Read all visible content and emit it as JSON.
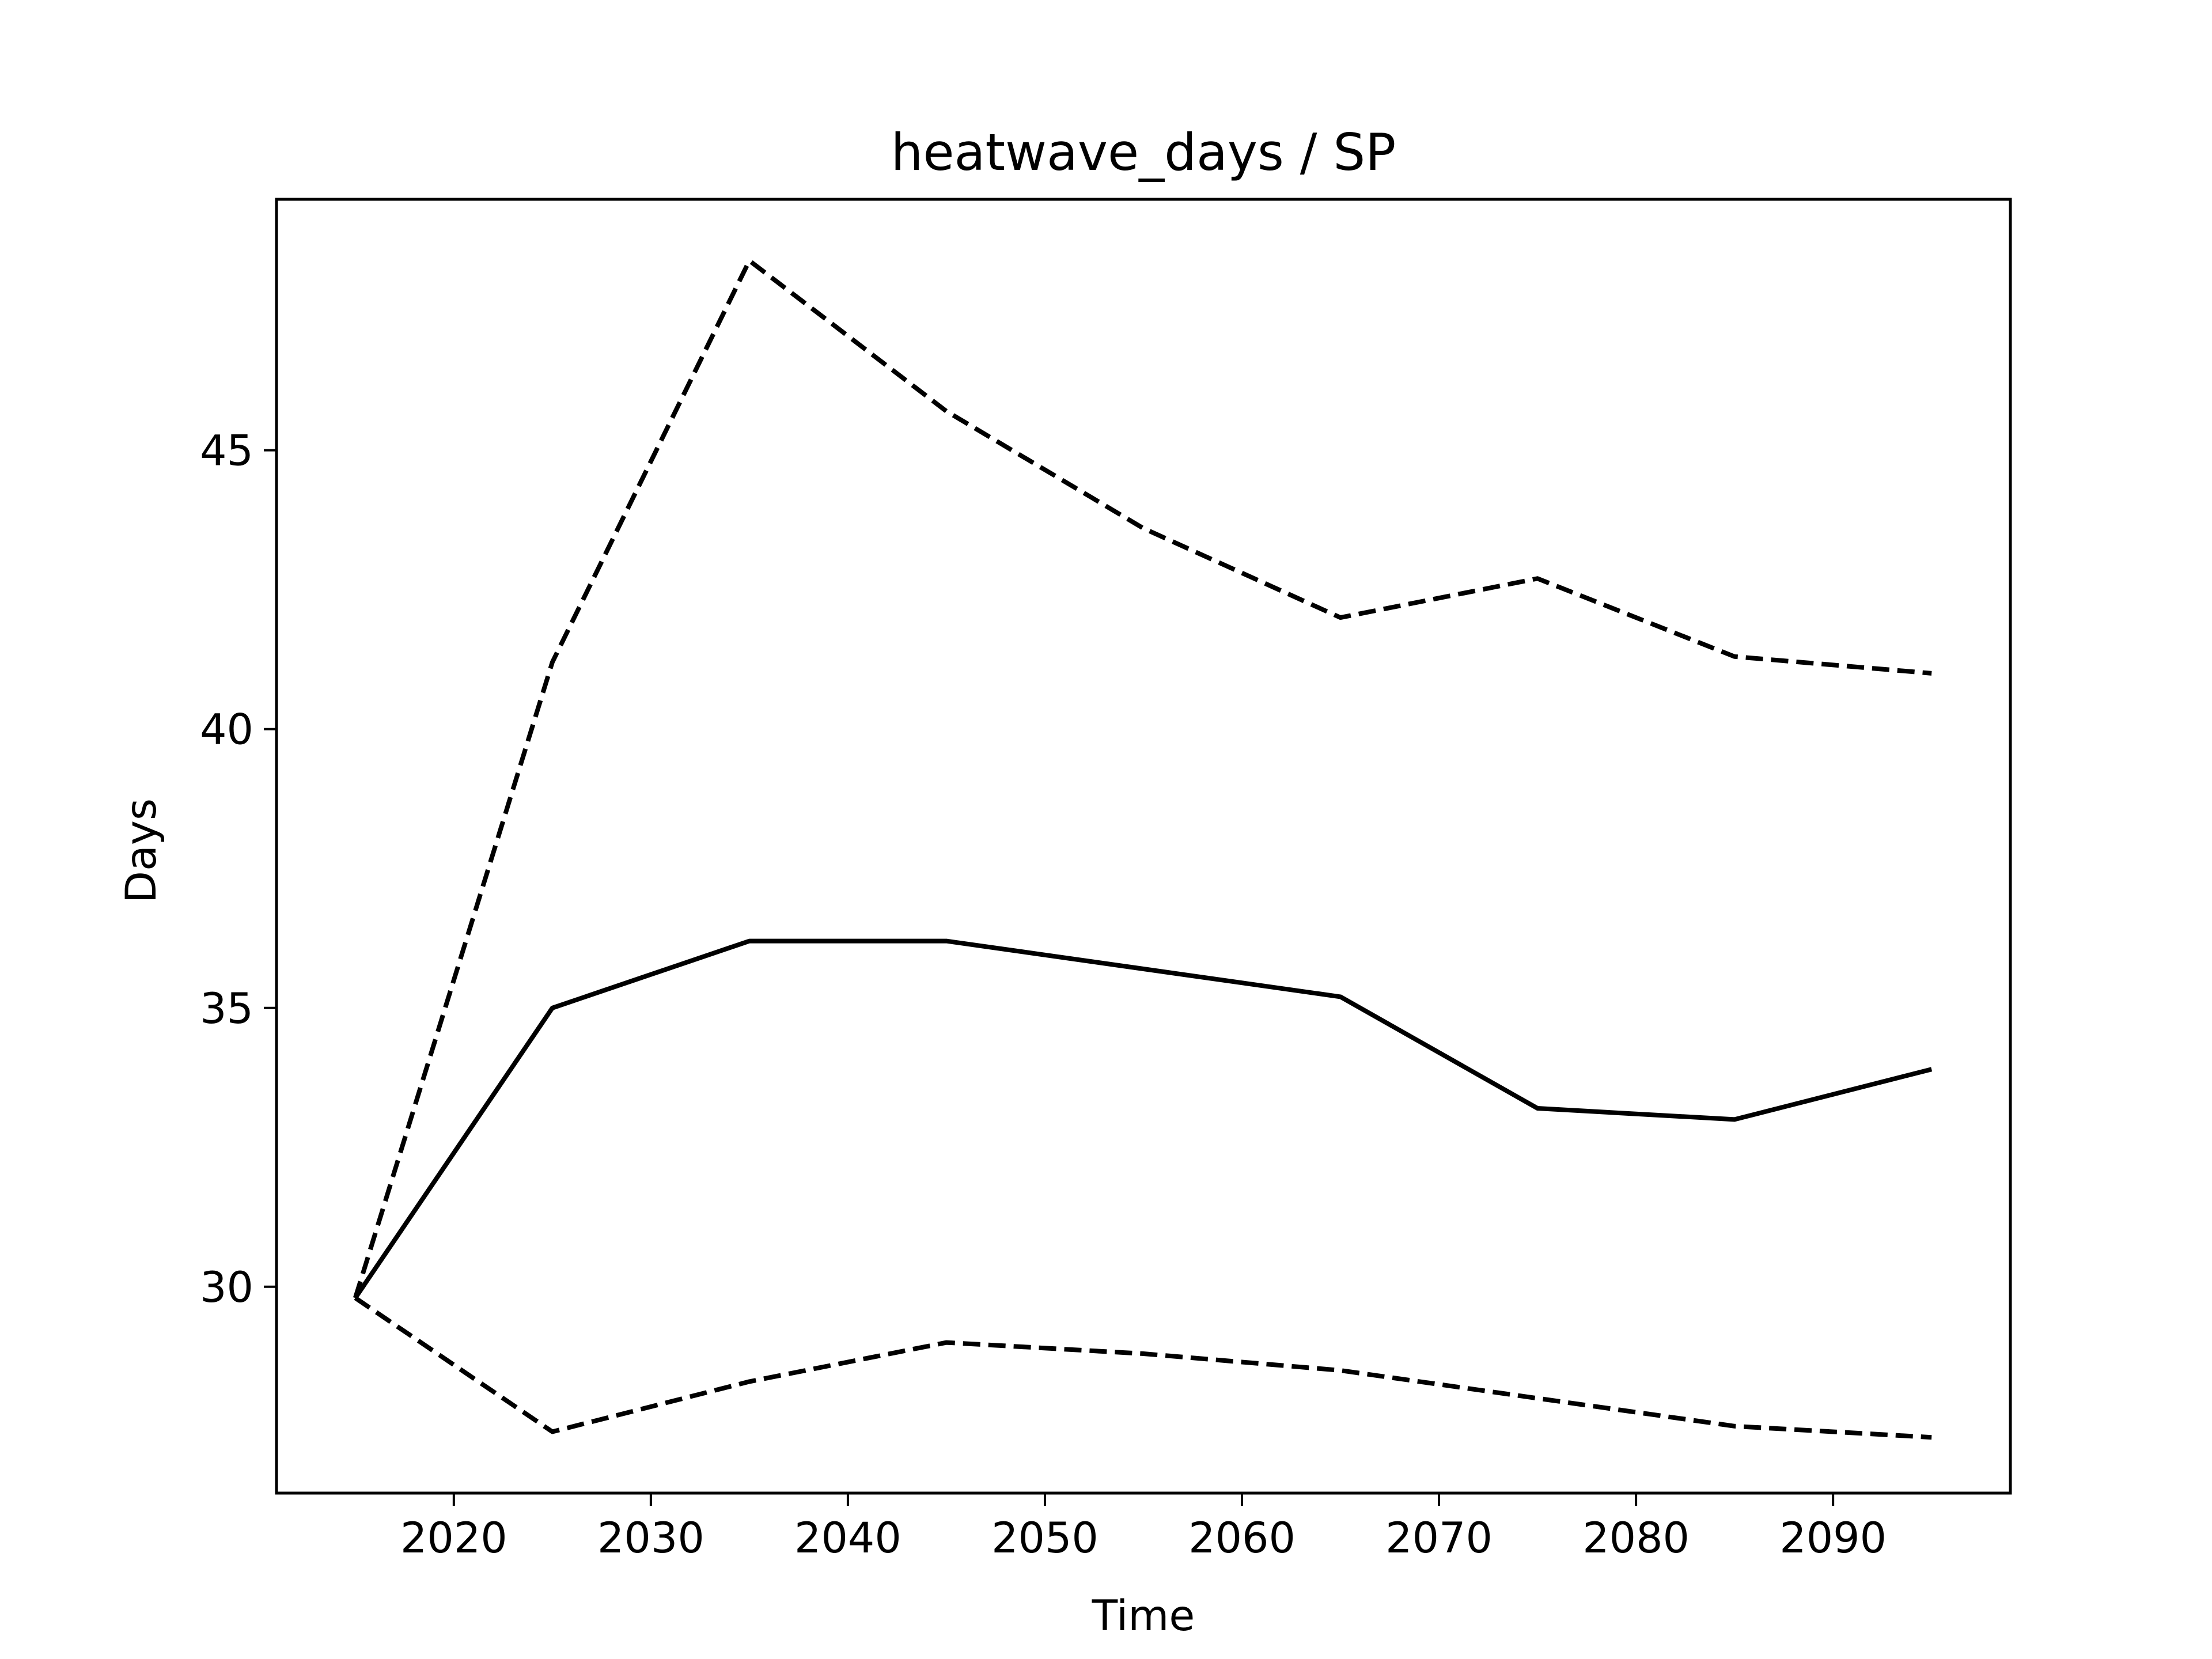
{
  "chart_data": {
    "type": "line",
    "title": "heatwave_days / SP",
    "xlabel": "Time",
    "ylabel": "Days",
    "xlim": [
      2011,
      2099
    ],
    "ylim": [
      26.3,
      49.5
    ],
    "xticks": [
      2020,
      2030,
      2040,
      2050,
      2060,
      2070,
      2080,
      2090
    ],
    "yticks": [
      30,
      35,
      40,
      45
    ],
    "grid": false,
    "x": [
      2015,
      2025,
      2035,
      2045,
      2055,
      2065,
      2075,
      2085,
      2095
    ],
    "series": [
      {
        "style": "solid",
        "color": "#000000",
        "values": [
          29.8,
          35.0,
          36.2,
          36.2,
          35.7,
          35.2,
          33.2,
          33.0,
          33.9
        ]
      },
      {
        "style": "dashed",
        "color": "#000000",
        "values": [
          29.8,
          41.2,
          48.4,
          45.7,
          43.6,
          42.0,
          42.7,
          41.3,
          41.0
        ]
      },
      {
        "style": "dashed",
        "color": "#000000",
        "values": [
          29.8,
          27.4,
          28.3,
          29.0,
          28.8,
          28.5,
          28.0,
          27.5,
          27.3
        ]
      }
    ]
  }
}
